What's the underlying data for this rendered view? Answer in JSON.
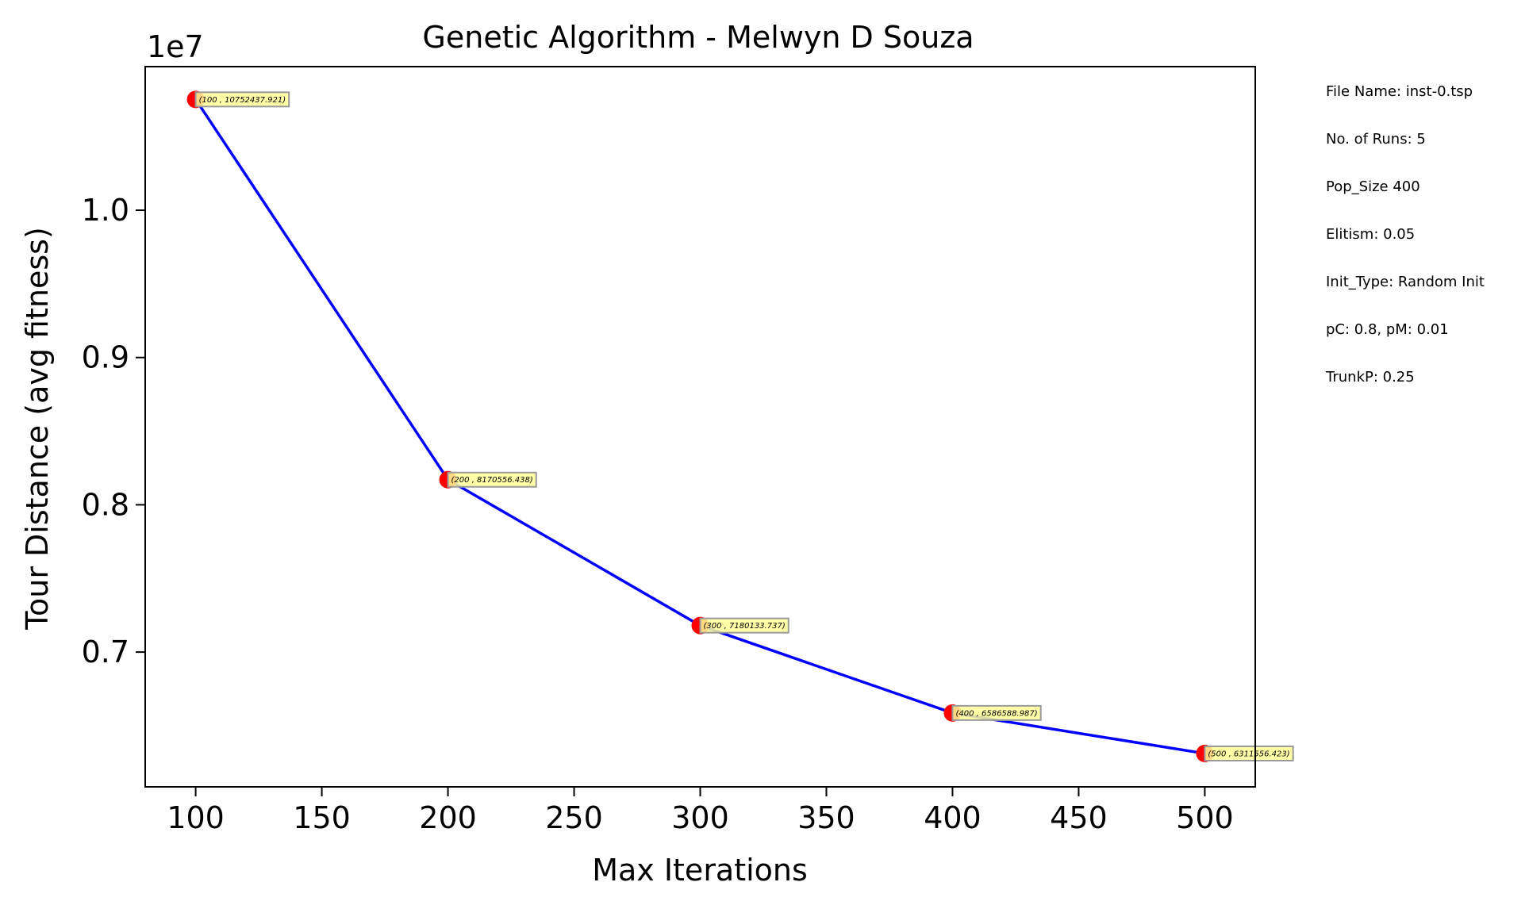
{
  "chart_data": {
    "type": "line",
    "title": "Genetic Algorithm - Melwyn D Souza",
    "xlabel": "Max Iterations",
    "ylabel": "Tour Distance (avg fitness)",
    "y_offset_label": "1e7",
    "x": [
      100,
      200,
      300,
      400,
      500
    ],
    "y": [
      10752437.921,
      8170556.438,
      7180133.737,
      6586588.987,
      6311556.423
    ],
    "point_labels": [
      "(100 , 10752437.921)",
      "(200 , 8170556.438)",
      "(300 , 7180133.737)",
      "(400 , 6586588.987)",
      "(500 , 6311556.423)"
    ],
    "xlim": [
      80,
      520
    ],
    "ylim": [
      6085000,
      10975000
    ],
    "x_ticks": [
      100,
      150,
      200,
      250,
      300,
      350,
      400,
      450,
      500
    ],
    "x_tick_labels": [
      "100",
      "150",
      "200",
      "250",
      "300",
      "350",
      "400",
      "450",
      "500"
    ],
    "y_ticks": [
      7000000,
      8000000,
      9000000,
      10000000
    ],
    "y_tick_labels": [
      "0.7",
      "0.8",
      "0.9",
      "1.0"
    ],
    "line_color": "#0000ff",
    "marker_color": "#ff0000",
    "label_bg_color": "#ffff99",
    "grid": false,
    "legend": "none"
  },
  "info_panel": [
    "File Name: inst-0.tsp",
    "No. of Runs: 5",
    "Pop_Size 400",
    "Elitism: 0.05",
    "Init_Type: Random Init",
    "pC: 0.8, pM: 0.01",
    "TrunkP: 0.25"
  ]
}
